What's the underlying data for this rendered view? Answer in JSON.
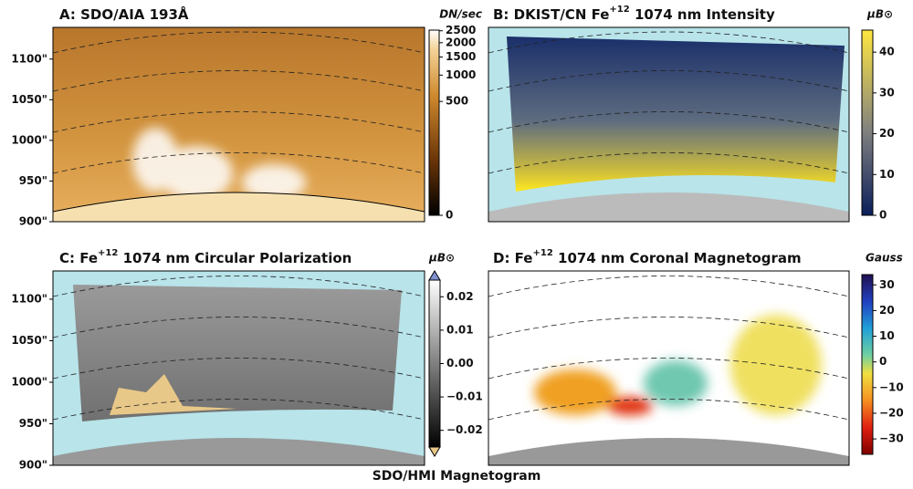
{
  "panels": [
    {
      "title": [
        "A:  SDO/AIA 193Å"
      ],
      "ylim": [
        900,
        1139
      ],
      "yticks": [
        {
          "value": 900,
          "label": "900\""
        },
        {
          "value": 950,
          "label": "950\""
        },
        {
          "value": 1000,
          "label": "1000\""
        },
        {
          "value": 1050,
          "label": "1050\""
        },
        {
          "value": 1100,
          "label": "1100\""
        }
      ],
      "colorbar": {
        "label": "DN/sec",
        "scale": "power",
        "exponent": 0.3,
        "lim": [
          0,
          2530
        ],
        "ticks": [
          0,
          500,
          1000,
          1500,
          2000,
          2500
        ]
      }
    },
    {
      "title": [
        "B:  DKIST/CN Fe",
        "+12",
        " 1074 nm Intensity"
      ],
      "colorbar": {
        "label": "μB⊙",
        "scale": "linear",
        "lim": [
          0,
          45.4
        ],
        "ticks": [
          0,
          10,
          20,
          30,
          40
        ]
      }
    },
    {
      "title": [
        "C:  Fe",
        "+12",
        " 1074 nm Circular Polarization"
      ],
      "ylim": [
        900,
        1134
      ],
      "yticks": [
        {
          "value": 900,
          "label": "900\""
        },
        {
          "value": 950,
          "label": "950\""
        },
        {
          "value": 1000,
          "label": "1000\""
        },
        {
          "value": 1050,
          "label": "1050\""
        },
        {
          "value": 1100,
          "label": "1100\""
        }
      ],
      "colorbar": {
        "label": "μB⊙",
        "scale": "linear",
        "lim": [
          -0.025,
          0.025
        ],
        "extend": true,
        "ticks": [
          {
            "value": -0.02,
            "label": "−0.02"
          },
          {
            "value": -0.01,
            "label": "−0.01"
          },
          {
            "value": 0,
            "label": "0.00"
          },
          0.01,
          0.02
        ]
      }
    },
    {
      "title": [
        "D:  Fe",
        "+12",
        " 1074 nm Coronal Magnetogram"
      ],
      "colorbar": {
        "label": "Gauss",
        "scale": "linear",
        "lim": [
          -36,
          34
        ],
        "ticks": [
          {
            "value": -30,
            "label": "−30"
          },
          {
            "value": -20,
            "label": "−20"
          },
          {
            "value": -10,
            "label": "−10"
          },
          0,
          10,
          20,
          30
        ]
      }
    }
  ],
  "xlabel": "SDO/HMI Magnetogram"
}
